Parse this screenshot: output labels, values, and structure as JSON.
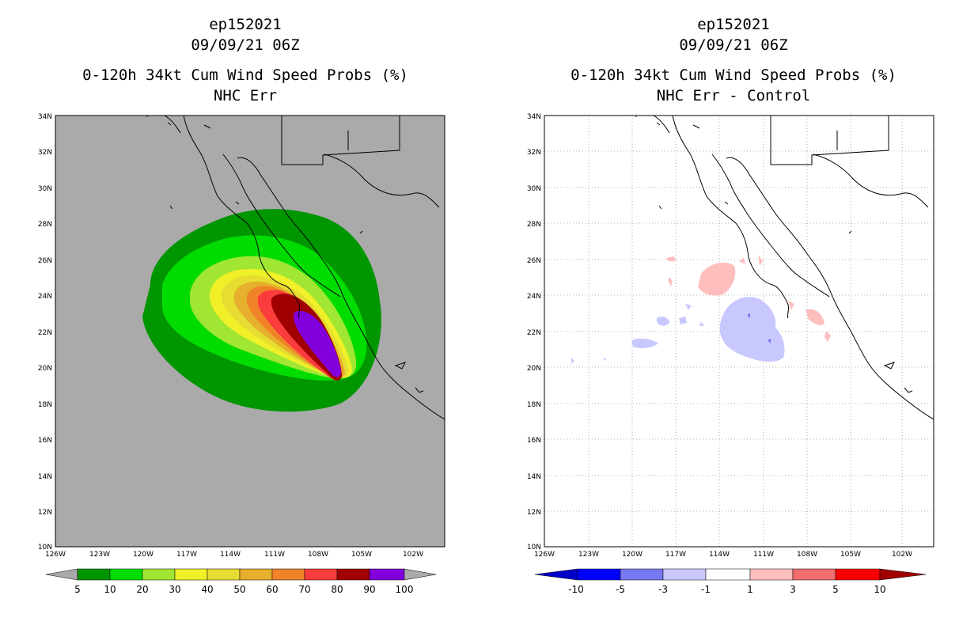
{
  "left_panel": {
    "title_lines": [
      "ep152021",
      "09/09/21 06Z",
      "0-120h 34kt Cum Wind Speed Probs (%)",
      "NHC Err"
    ],
    "colorbar_labels": [
      "5",
      "10",
      "20",
      "30",
      "40",
      "50",
      "60",
      "70",
      "80",
      "90",
      "100"
    ],
    "colorbar_colors": [
      "#009600",
      "#00dc00",
      "#a0e632",
      "#f0f028",
      "#e6dc32",
      "#e6af2d",
      "#f08228",
      "#fa3c3c",
      "#a00000",
      "#8200dc"
    ]
  },
  "right_panel": {
    "title_lines": [
      "ep152021",
      "09/09/21 06Z",
      "0-120h 34kt Cum Wind Speed Probs (%)",
      "NHC Err - Control"
    ],
    "colorbar_labels": [
      "-10",
      "-5",
      "-3",
      "-1",
      "1",
      "3",
      "5",
      "10"
    ],
    "colorbar_colors": [
      "#0000c8",
      "#0000ff",
      "#7878f0",
      "#c8c8ff",
      "#ffffff",
      "#ffbebe",
      "#f06e6e",
      "#fa0000",
      "#a00000"
    ]
  },
  "lat_labels": [
    "34N",
    "32N",
    "30N",
    "28N",
    "26N",
    "24N",
    "22N",
    "20N",
    "18N",
    "16N",
    "14N",
    "12N",
    "10N"
  ],
  "lon_labels": [
    "126W",
    "123W",
    "120W",
    "117W",
    "114W",
    "111W",
    "108W",
    "105W",
    "102W"
  ],
  "colors": {
    "land_background": "#aaaaaa",
    "outside_arrow": "#aaaaaa",
    "prob_levels": [
      "#009600",
      "#00dc00",
      "#a0e632",
      "#f0f028",
      "#e6dc32",
      "#e6af2d",
      "#f08228",
      "#fa3c3c",
      "#a00000",
      "#8200dc"
    ],
    "diff_positive": "#ffbebe",
    "diff_negative": "#c8c8ff",
    "diff_negative_dark": "#7878f0",
    "diff_positive_dark": "#f06e6e"
  }
}
